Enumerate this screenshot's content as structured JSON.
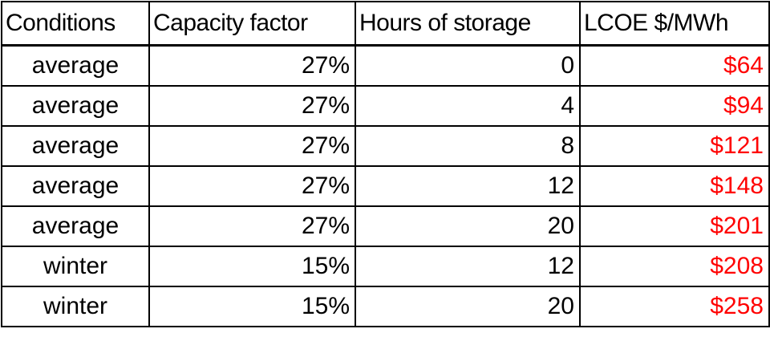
{
  "table": {
    "header": [
      "Conditions",
      "Capacity factor",
      "Hours of storage",
      "LCOE $/MWh"
    ],
    "rows": [
      [
        "average",
        "27%",
        "0",
        "$64"
      ],
      [
        "average",
        "27%",
        "4",
        "$94"
      ],
      [
        "average",
        "27%",
        "8",
        "$121"
      ],
      [
        "average",
        "27%",
        "12",
        "$148"
      ],
      [
        "average",
        "27%",
        "20",
        "$201"
      ],
      [
        "winter",
        "15%",
        "12",
        "$208"
      ],
      [
        "winter",
        "15%",
        "20",
        "$258"
      ]
    ]
  }
}
